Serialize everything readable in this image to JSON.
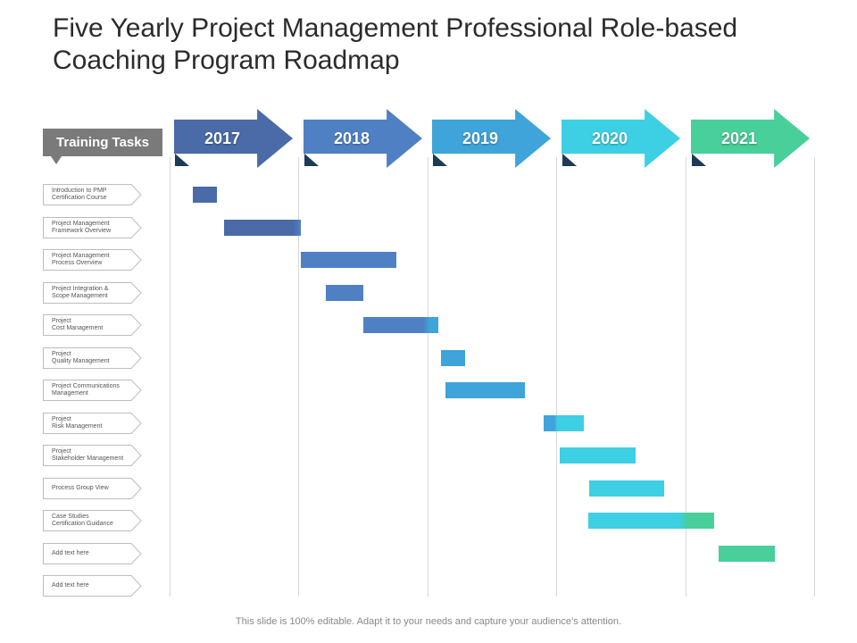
{
  "title": {
    "line1": "Five Yearly Project Management Professional Role-based",
    "line2": "Coaching Program Roadmap"
  },
  "tasks_header": "Training Tasks",
  "colors": {
    "y2017": "#4a6aa8",
    "y2018": "#4f80c4",
    "y2019": "#3ea4d9",
    "y2020": "#3dcfe3",
    "y2021": "#48cf9a"
  },
  "years": [
    "2017",
    "2018",
    "2019",
    "2020",
    "2021"
  ],
  "tasks": [
    {
      "label": "Introduction  to PMP\nCertification Course"
    },
    {
      "label": "Project Management\nFramework Overview"
    },
    {
      "label": "Project Management\nProcess Overview"
    },
    {
      "label": "Project Integration  &\nScope Management"
    },
    {
      "label": "Project\nCost Management"
    },
    {
      "label": "Project\nQuality Management"
    },
    {
      "label": "Project Communications\nManagement"
    },
    {
      "label": "Project\nRisk Management"
    },
    {
      "label": "Project\nStakeholder  Management"
    },
    {
      "label": "Process Group View"
    },
    {
      "label": "Case Studies\nCertification Guidance"
    },
    {
      "label": "Add text here"
    },
    {
      "label": "Add text here"
    }
  ],
  "chart_data": {
    "type": "gantt",
    "x_axis": "years",
    "x_range": [
      2017,
      2022
    ],
    "bars": [
      {
        "task": "Introduction  to PMP Certification Course",
        "start": 2017.18,
        "end": 2017.37
      },
      {
        "task": "Project Management Framework Overview",
        "start": 2017.42,
        "end": 2018.02
      },
      {
        "task": "Project Management Process Overview",
        "start": 2018.02,
        "end": 2018.76
      },
      {
        "task": "Project Integration  & Scope Management",
        "start": 2018.21,
        "end": 2018.5
      },
      {
        "task": "Project Cost Management",
        "start": 2018.5,
        "end": 2019.08
      },
      {
        "task": "Project Quality Management",
        "start": 2019.1,
        "end": 2019.29
      },
      {
        "task": "Project Communications Management",
        "start": 2019.14,
        "end": 2019.75
      },
      {
        "task": "Project Risk Management",
        "start": 2019.9,
        "end": 2020.21
      },
      {
        "task": "Project Stakeholder  Management",
        "start": 2020.02,
        "end": 2020.61
      },
      {
        "task": "Process Group View",
        "start": 2020.25,
        "end": 2020.83
      },
      {
        "task": "Case Studies Certification Guidance",
        "start": 2020.24,
        "end": 2021.22
      },
      {
        "task": "Add text here",
        "start": 2021.25,
        "end": 2021.69
      }
    ]
  },
  "footer": "This slide is 100% editable. Adapt it to your needs and capture your audience’s attention."
}
